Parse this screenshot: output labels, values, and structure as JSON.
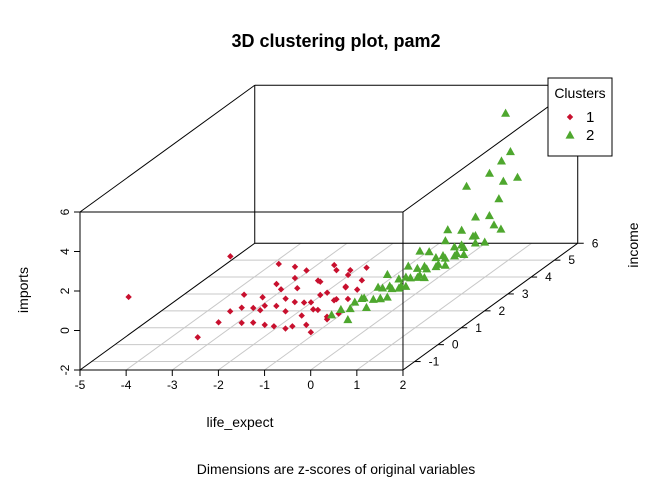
{
  "chart_data": {
    "type": "scatter",
    "projection": "3d",
    "title": "3D clustering plot, pam2",
    "subtitle": "Dimensions are z-scores of original variables",
    "xlabel": "life_expect",
    "ylabel": "income",
    "zlabel": "imports",
    "xlim": [
      -5,
      2
    ],
    "ylim": [
      -1.5,
      6
    ],
    "zlim": [
      -2,
      6
    ],
    "x_ticks": [
      "-5",
      "-4",
      "-3",
      "-2",
      "-1",
      "0",
      "1",
      "2"
    ],
    "y_ticks": [
      "-1",
      "0",
      "1",
      "2",
      "3",
      "4",
      "5",
      "6"
    ],
    "z_ticks": [
      "-2",
      "0",
      "2",
      "4",
      "6"
    ],
    "grid": true,
    "legend": {
      "title": "Clusters",
      "placement": "top-right"
    },
    "series": [
      {
        "name": "1",
        "color": "#C8102E",
        "marker": "diamond",
        "points": [
          [
            -4.3,
            -0.8,
            1.1
          ],
          [
            -2.6,
            0.2,
            2.3
          ],
          [
            -2.6,
            -1.2,
            -0.6
          ],
          [
            -1.5,
            0.1,
            2.0
          ],
          [
            -1.3,
            0.4,
            1.6
          ],
          [
            -1.2,
            0.2,
            1.2
          ],
          [
            -1.0,
            0.3,
            1.5
          ],
          [
            -0.5,
            0.5,
            1.6
          ],
          [
            -0.3,
            0.2,
            1.6
          ],
          [
            -0.2,
            0.5,
            1.1
          ],
          [
            0.0,
            0.2,
            1.6
          ],
          [
            0.1,
            0.7,
            1.3
          ],
          [
            -2.2,
            -0.6,
            0.2
          ],
          [
            -2.0,
            -0.5,
            0.3
          ],
          [
            -1.8,
            -0.4,
            0.2
          ],
          [
            -1.7,
            -0.3,
            0.0
          ],
          [
            -1.5,
            -0.5,
            0.4
          ],
          [
            -1.9,
            -0.7,
            -0.3
          ],
          [
            -1.6,
            -0.8,
            -0.2
          ],
          [
            -1.4,
            -0.7,
            -0.4
          ],
          [
            -1.3,
            -0.4,
            0.3
          ],
          [
            -1.2,
            -0.2,
            0.5
          ],
          [
            -1.0,
            -0.6,
            0.2
          ],
          [
            -0.9,
            -0.4,
            0.5
          ],
          [
            -0.8,
            -0.2,
            0.3
          ],
          [
            -0.7,
            -0.5,
            -0.1
          ],
          [
            -0.6,
            -0.3,
            0.4
          ],
          [
            -0.5,
            -0.1,
            0.6
          ],
          [
            -0.4,
            -0.4,
            0.1
          ],
          [
            -0.3,
            -0.2,
            0.8
          ],
          [
            -0.2,
            0.0,
            0.3
          ],
          [
            -0.1,
            -0.3,
            0.5
          ],
          [
            0.0,
            0.0,
            0.9
          ],
          [
            0.1,
            -0.1,
            0.4
          ],
          [
            0.2,
            0.1,
            0.7
          ],
          [
            -1.1,
            -0.9,
            -0.3
          ],
          [
            -0.9,
            -0.8,
            -0.5
          ],
          [
            -0.7,
            -0.9,
            -0.3
          ],
          [
            -0.5,
            -0.7,
            -0.4
          ],
          [
            -0.3,
            -0.9,
            -0.6
          ],
          [
            -0.1,
            -0.6,
            -0.2
          ],
          [
            0.1,
            -0.5,
            0.0
          ],
          [
            -1.4,
            0.0,
            0.8
          ],
          [
            -1.2,
            0.3,
            0.6
          ],
          [
            -0.8,
            0.4,
            0.9
          ],
          [
            -0.6,
            0.1,
            1.1
          ],
          [
            -0.2,
            0.4,
            0.6
          ],
          [
            0.2,
            0.3,
            1.0
          ],
          [
            -2.1,
            -0.2,
            0.7
          ],
          [
            -1.6,
            0.2,
            0.9
          ],
          [
            -1.8,
            0.0,
            0.4
          ],
          [
            -0.4,
            -0.6,
            0.3
          ],
          [
            0.0,
            -0.8,
            0.1
          ],
          [
            -2.3,
            -0.9,
            -0.1
          ]
        ]
      },
      {
        "name": "2",
        "color": "#4EA72E",
        "marker": "triangle",
        "points": [
          [
            0.6,
            5.5,
            2.6
          ],
          [
            0.6,
            4.0,
            2.6
          ],
          [
            1.2,
            4.2,
            1.8
          ],
          [
            1.8,
            3.3,
            6.9
          ],
          [
            1.3,
            3.6,
            3.6
          ],
          [
            1.4,
            4.3,
            4.1
          ],
          [
            1.2,
            5.0,
            2.2
          ],
          [
            1.6,
            3.6,
            3.2
          ],
          [
            0.4,
            1.0,
            0.7
          ],
          [
            0.6,
            1.5,
            0.7
          ],
          [
            0.8,
            2.0,
            1.0
          ],
          [
            1.0,
            2.3,
            1.3
          ],
          [
            0.4,
            0.6,
            0.4
          ],
          [
            0.5,
            0.9,
            0.2
          ],
          [
            0.7,
            1.2,
            0.4
          ],
          [
            0.9,
            1.6,
            0.6
          ],
          [
            1.1,
            2.0,
            0.8
          ],
          [
            1.3,
            2.4,
            1.0
          ],
          [
            0.6,
            0.3,
            0.1
          ],
          [
            0.8,
            0.8,
            0.3
          ],
          [
            1.0,
            1.2,
            0.5
          ],
          [
            1.2,
            1.6,
            0.7
          ],
          [
            1.4,
            2.0,
            0.9
          ],
          [
            1.6,
            2.4,
            1.1
          ],
          [
            0.3,
            0.2,
            0.2
          ],
          [
            0.5,
            0.5,
            -0.1
          ],
          [
            0.7,
            0.9,
            0.1
          ],
          [
            0.9,
            1.3,
            0.3
          ],
          [
            1.1,
            1.7,
            0.5
          ],
          [
            1.3,
            2.1,
            0.7
          ],
          [
            1.5,
            2.6,
            1.3
          ],
          [
            1.7,
            3.0,
            1.5
          ],
          [
            0.2,
            -0.2,
            0.0
          ],
          [
            0.4,
            0.1,
            -0.2
          ],
          [
            0.6,
            0.6,
            -0.1
          ],
          [
            0.8,
            1.0,
            0.1
          ],
          [
            1.0,
            1.4,
            0.2
          ],
          [
            1.2,
            1.9,
            0.4
          ],
          [
            1.4,
            2.3,
            0.6
          ],
          [
            1.6,
            2.8,
            0.8
          ],
          [
            1.8,
            3.1,
            1.2
          ],
          [
            0.5,
            -0.3,
            0.6
          ],
          [
            0.7,
            0.2,
            0.7
          ],
          [
            0.9,
            0.5,
            0.9
          ],
          [
            1.1,
            0.9,
            1.1
          ],
          [
            1.3,
            1.3,
            1.3
          ],
          [
            1.5,
            1.7,
            1.5
          ],
          [
            1.7,
            2.1,
            1.7
          ],
          [
            0.2,
            -0.6,
            0.3
          ],
          [
            0.4,
            -0.4,
            0.5
          ],
          [
            0.6,
            0.0,
            0.3
          ],
          [
            0.8,
            0.4,
            0.5
          ],
          [
            1.0,
            0.8,
            0.7
          ],
          [
            1.2,
            1.1,
            0.9
          ],
          [
            1.4,
            1.5,
            1.1
          ],
          [
            1.6,
            1.9,
            1.3
          ],
          [
            0.1,
            -0.8,
            0.2
          ],
          [
            0.3,
            -0.5,
            -0.3
          ],
          [
            1.1,
            2.8,
            1.4
          ],
          [
            1.5,
            3.2,
            1.8
          ],
          [
            0.9,
            2.6,
            1.6
          ],
          [
            1.3,
            3.0,
            1.9
          ],
          [
            0.7,
            1.8,
            1.2
          ]
        ]
      }
    ]
  }
}
